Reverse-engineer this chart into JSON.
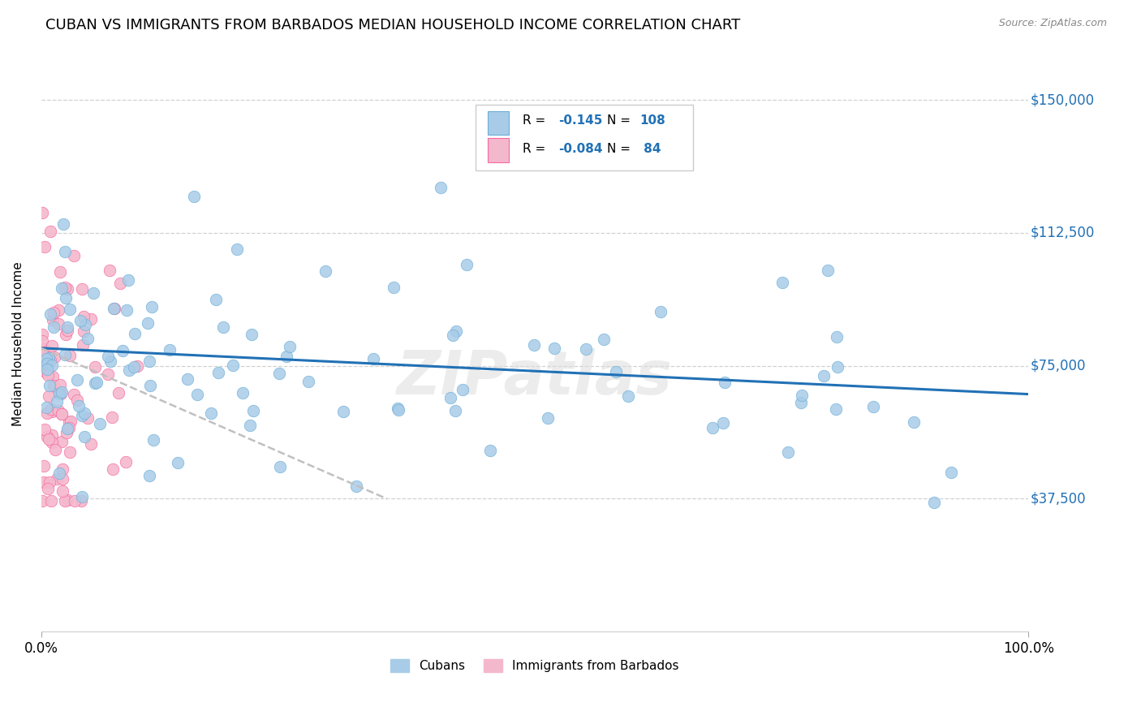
{
  "title": "CUBAN VS IMMIGRANTS FROM BARBADOS MEDIAN HOUSEHOLD INCOME CORRELATION CHART",
  "source": "Source: ZipAtlas.com",
  "ylabel": "Median Household Income",
  "xlim": [
    0,
    1.0
  ],
  "ylim": [
    0,
    162500
  ],
  "xtick_labels": [
    "0.0%",
    "100.0%"
  ],
  "ytick_labels": [
    "$37,500",
    "$75,000",
    "$112,500",
    "$150,000"
  ],
  "ytick_values": [
    37500,
    75000,
    112500,
    150000
  ],
  "watermark": "ZIPatlas",
  "blue_color": "#a8cce8",
  "pink_color": "#f4b8cc",
  "blue_edge": "#6baed6",
  "pink_edge": "#f768a1",
  "line_blue": "#2171b5",
  "line_pink_dash": "#c0c0c0",
  "title_fontsize": 13,
  "label_fontsize": 11,
  "tick_fontsize": 12,
  "ytick_color": "#2171b5",
  "legend_blue_r": "R =",
  "legend_blue_rv": "-0.145",
  "legend_blue_n": "N =",
  "legend_blue_nv": "108",
  "legend_pink_r": "R =",
  "legend_pink_rv": "-0.084",
  "legend_pink_n": "N =",
  "legend_pink_nv": "84",
  "blue_line_y0": 80000,
  "blue_line_y1": 67000,
  "pink_line_x0": 0.0,
  "pink_line_x1": 0.35,
  "pink_line_y0": 80000,
  "pink_line_y1": 37500
}
